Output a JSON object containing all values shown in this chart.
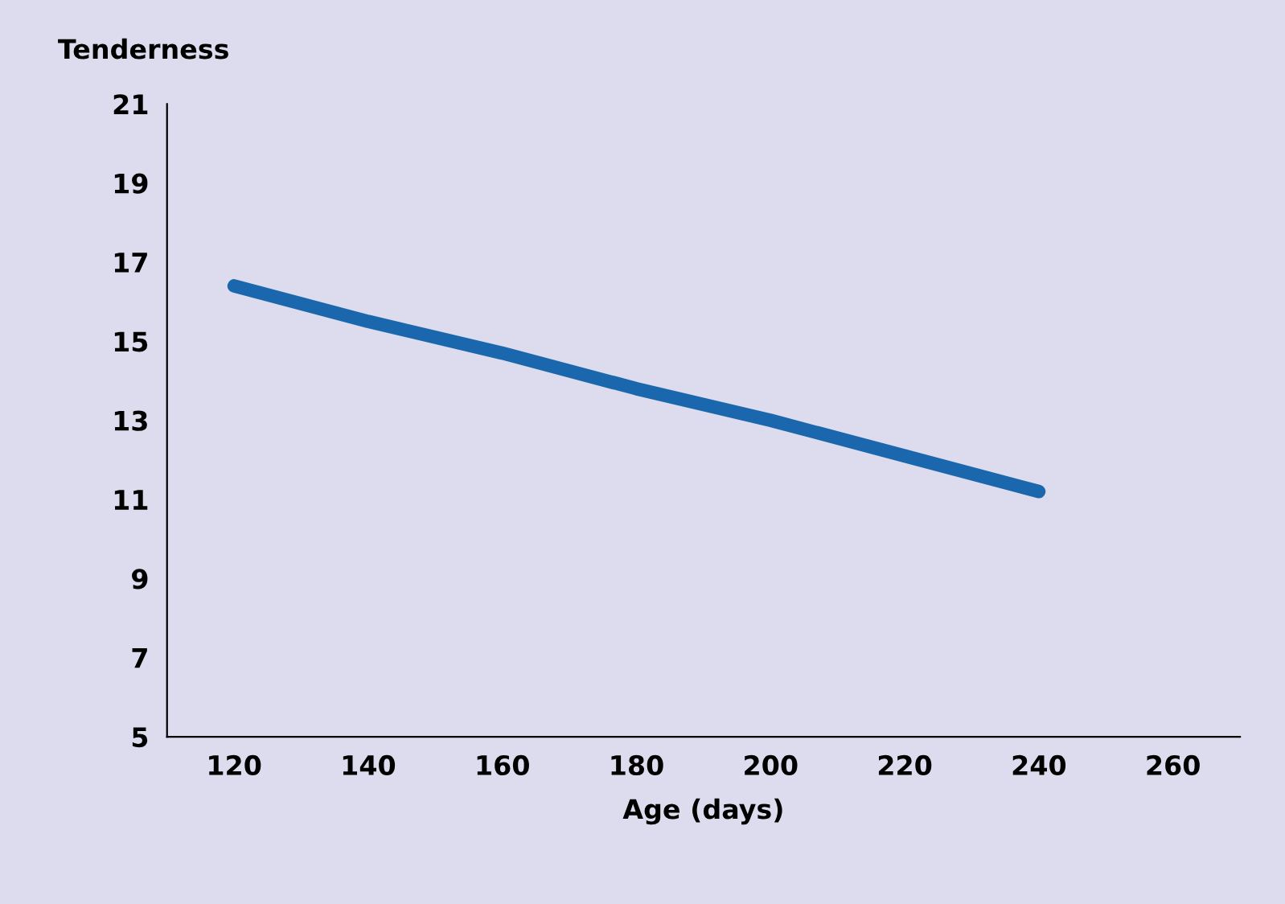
{
  "chart_data": {
    "type": "line",
    "ylabel": "Tenderness",
    "xlabel": "Age (days)",
    "x": [
      120,
      140,
      160,
      180,
      200,
      220,
      240
    ],
    "series": [
      {
        "color": "#1a67ae",
        "values": [
          16.4,
          15.5,
          14.7,
          13.8,
          13.0,
          12.1,
          11.2
        ]
      }
    ],
    "xlim": [
      110,
      270
    ],
    "xticks": [
      120,
      140,
      160,
      180,
      200,
      220,
      240,
      260
    ],
    "ylim": [
      5,
      21
    ],
    "yticks": [
      5,
      7,
      9,
      11,
      13,
      15,
      17,
      19,
      21
    ],
    "grid": false,
    "legend": false,
    "marker": "none",
    "line_style": "solid"
  }
}
